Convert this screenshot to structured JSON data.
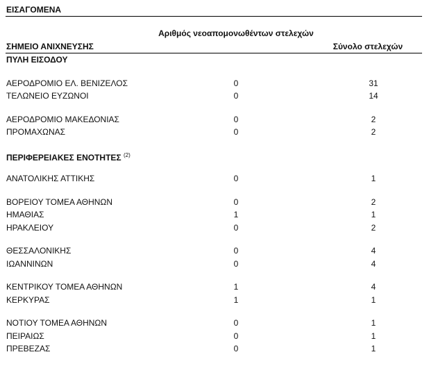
{
  "title": "ΕΙΣΑΓΟΜΕΝΑ",
  "columns": {
    "location": "ΣΗΜΕΙΟ ΑΝΙΧΝΕΥΣΗΣ",
    "isolated": "Αριθμός νεοαπομονωθέντων στελεχών",
    "total": "Σύνολο στελεχών"
  },
  "sections": [
    {
      "title": "ΠΥΛΗ ΕΙΣΟΔΟΥ",
      "note": "",
      "groups": [
        [
          {
            "name": "ΑΕΡΟΔΡΟΜΙΟ ΕΛ. ΒΕΝΙΖΕΛΟΣ",
            "isolated": "0",
            "total": "31"
          },
          {
            "name": "ΤΕΛΩΝΕΙΟ ΕΥΖΩΝΟΙ",
            "isolated": "0",
            "total": "14"
          }
        ],
        [
          {
            "name": "ΑΕΡΟΔΡΟΜΙΟ ΜΑΚΕΔΟΝΙΑΣ",
            "isolated": "0",
            "total": "2"
          },
          {
            "name": "ΠΡΟΜΑΧΩΝΑΣ",
            "isolated": "0",
            "total": "2"
          }
        ]
      ]
    },
    {
      "title": "ΠΕΡΙΦΕΡΕΙΑΚΕΣ ΕΝΟΤΗΤΕΣ",
      "note": "(2)",
      "groups": [
        [
          {
            "name": "ΑΝΑΤΟΛΙΚΗΣ ΑΤΤΙΚΗΣ",
            "isolated": "0",
            "total": "1"
          }
        ],
        [
          {
            "name": "ΒΟΡΕΙΟΥ ΤΟΜΕΑ ΑΘΗΝΩΝ",
            "isolated": "0",
            "total": "2"
          },
          {
            "name": "ΗΜΑΘΙΑΣ",
            "isolated": "1",
            "total": "1"
          },
          {
            "name": "ΗΡΑΚΛΕΙΟΥ",
            "isolated": "0",
            "total": "2"
          }
        ],
        [
          {
            "name": "ΘΕΣΣΑΛΟΝΙΚΗΣ",
            "isolated": "0",
            "total": "4"
          },
          {
            "name": "ΙΩΑΝΝΙΝΩΝ",
            "isolated": "0",
            "total": "4"
          }
        ],
        [
          {
            "name": "ΚΕΝΤΡΙΚΟΥ ΤΟΜΕΑ ΑΘΗΝΩΝ",
            "isolated": "1",
            "total": "4"
          },
          {
            "name": "ΚΕΡΚΥΡΑΣ",
            "isolated": "1",
            "total": "1"
          }
        ],
        [
          {
            "name": "ΝΟΤΙΟΥ ΤΟΜΕΑ ΑΘΗΝΩΝ",
            "isolated": "0",
            "total": "1"
          },
          {
            "name": "ΠΕΙΡΑΙΩΣ",
            "isolated": "0",
            "total": "1"
          },
          {
            "name": "ΠΡΕΒΕΖΑΣ",
            "isolated": "0",
            "total": "1"
          }
        ]
      ]
    }
  ]
}
